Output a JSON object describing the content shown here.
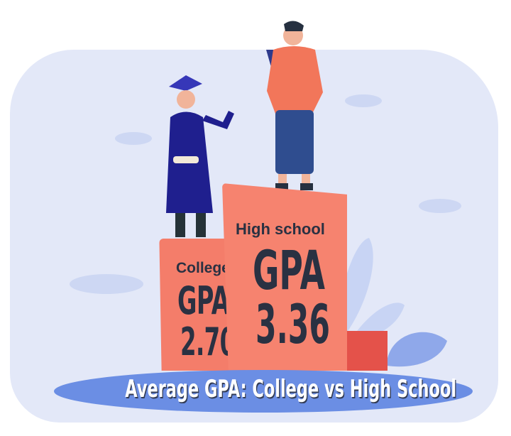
{
  "college": {
    "label": "College",
    "metric": "GPA",
    "value": "2.70"
  },
  "high_school": {
    "label": "High school",
    "metric": "GPA",
    "value": "3.36"
  },
  "title": "Average GPA: College vs High School",
  "colors": {
    "background": "#e3e8f8",
    "pedestal": "#f47d6a",
    "banner": "#6b8ee4",
    "text": "#2a3142"
  }
}
